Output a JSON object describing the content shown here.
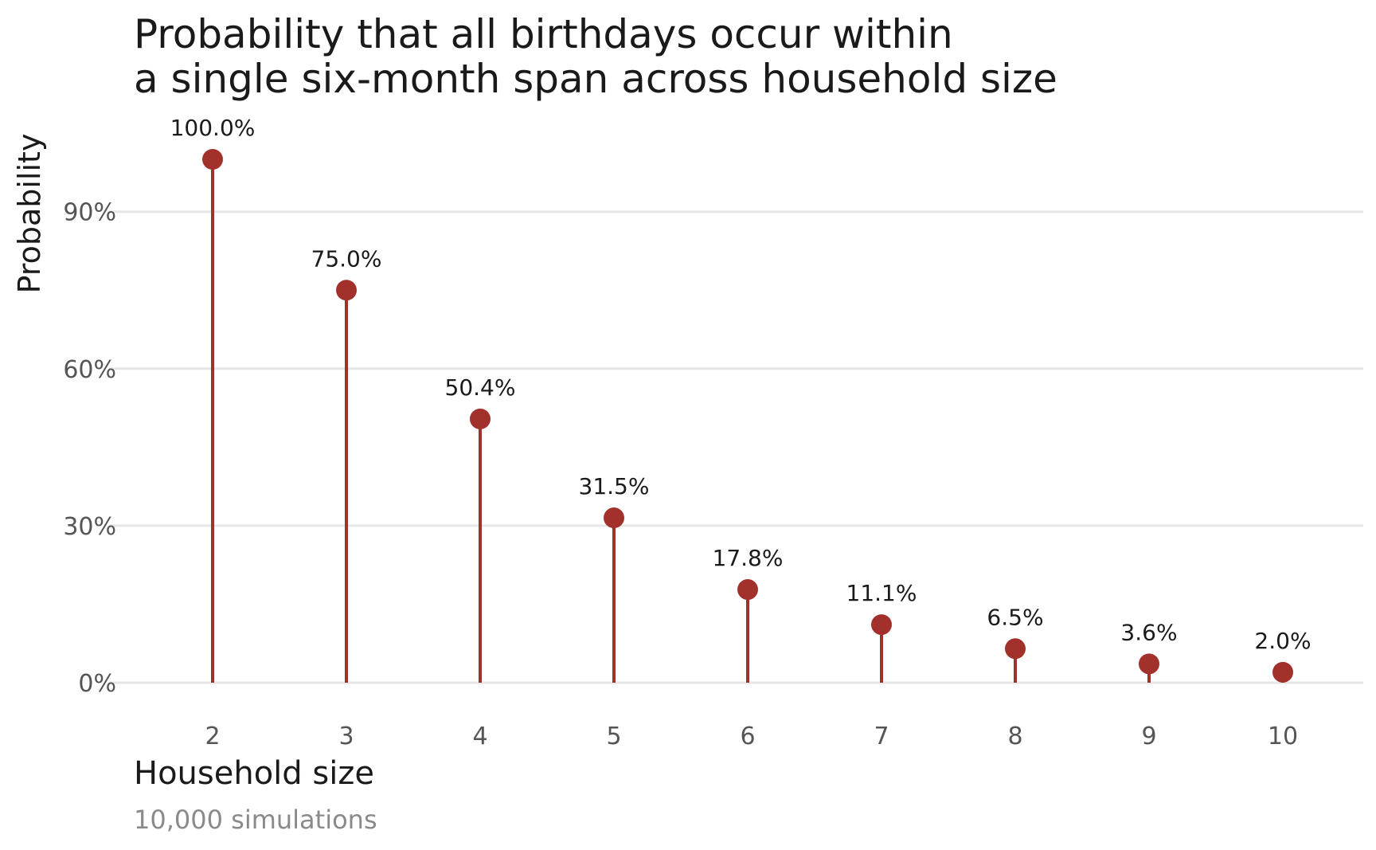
{
  "chart_data": {
    "type": "lollipop",
    "title": [
      "Probability that all birthdays occur within",
      "a single six-month span across household size"
    ],
    "xlabel": "Household size",
    "ylabel": "Probability",
    "caption": "10,000 simulations",
    "categories": [
      "2",
      "3",
      "4",
      "5",
      "6",
      "7",
      "8",
      "9",
      "10"
    ],
    "values": [
      100.0,
      75.0,
      50.4,
      31.5,
      17.8,
      11.1,
      6.5,
      3.6,
      2.0
    ],
    "value_labels": [
      "100.0%",
      "75.0%",
      "50.4%",
      "31.5%",
      "17.8%",
      "11.1%",
      "6.5%",
      "3.6%",
      "2.0%"
    ],
    "y_ticks": [
      0,
      30,
      60,
      90
    ],
    "y_tick_labels": [
      "0%",
      "30%",
      "60%",
      "90%"
    ],
    "ylim": [
      0,
      100
    ],
    "grid": "horizontal",
    "color": "#a3312b"
  }
}
